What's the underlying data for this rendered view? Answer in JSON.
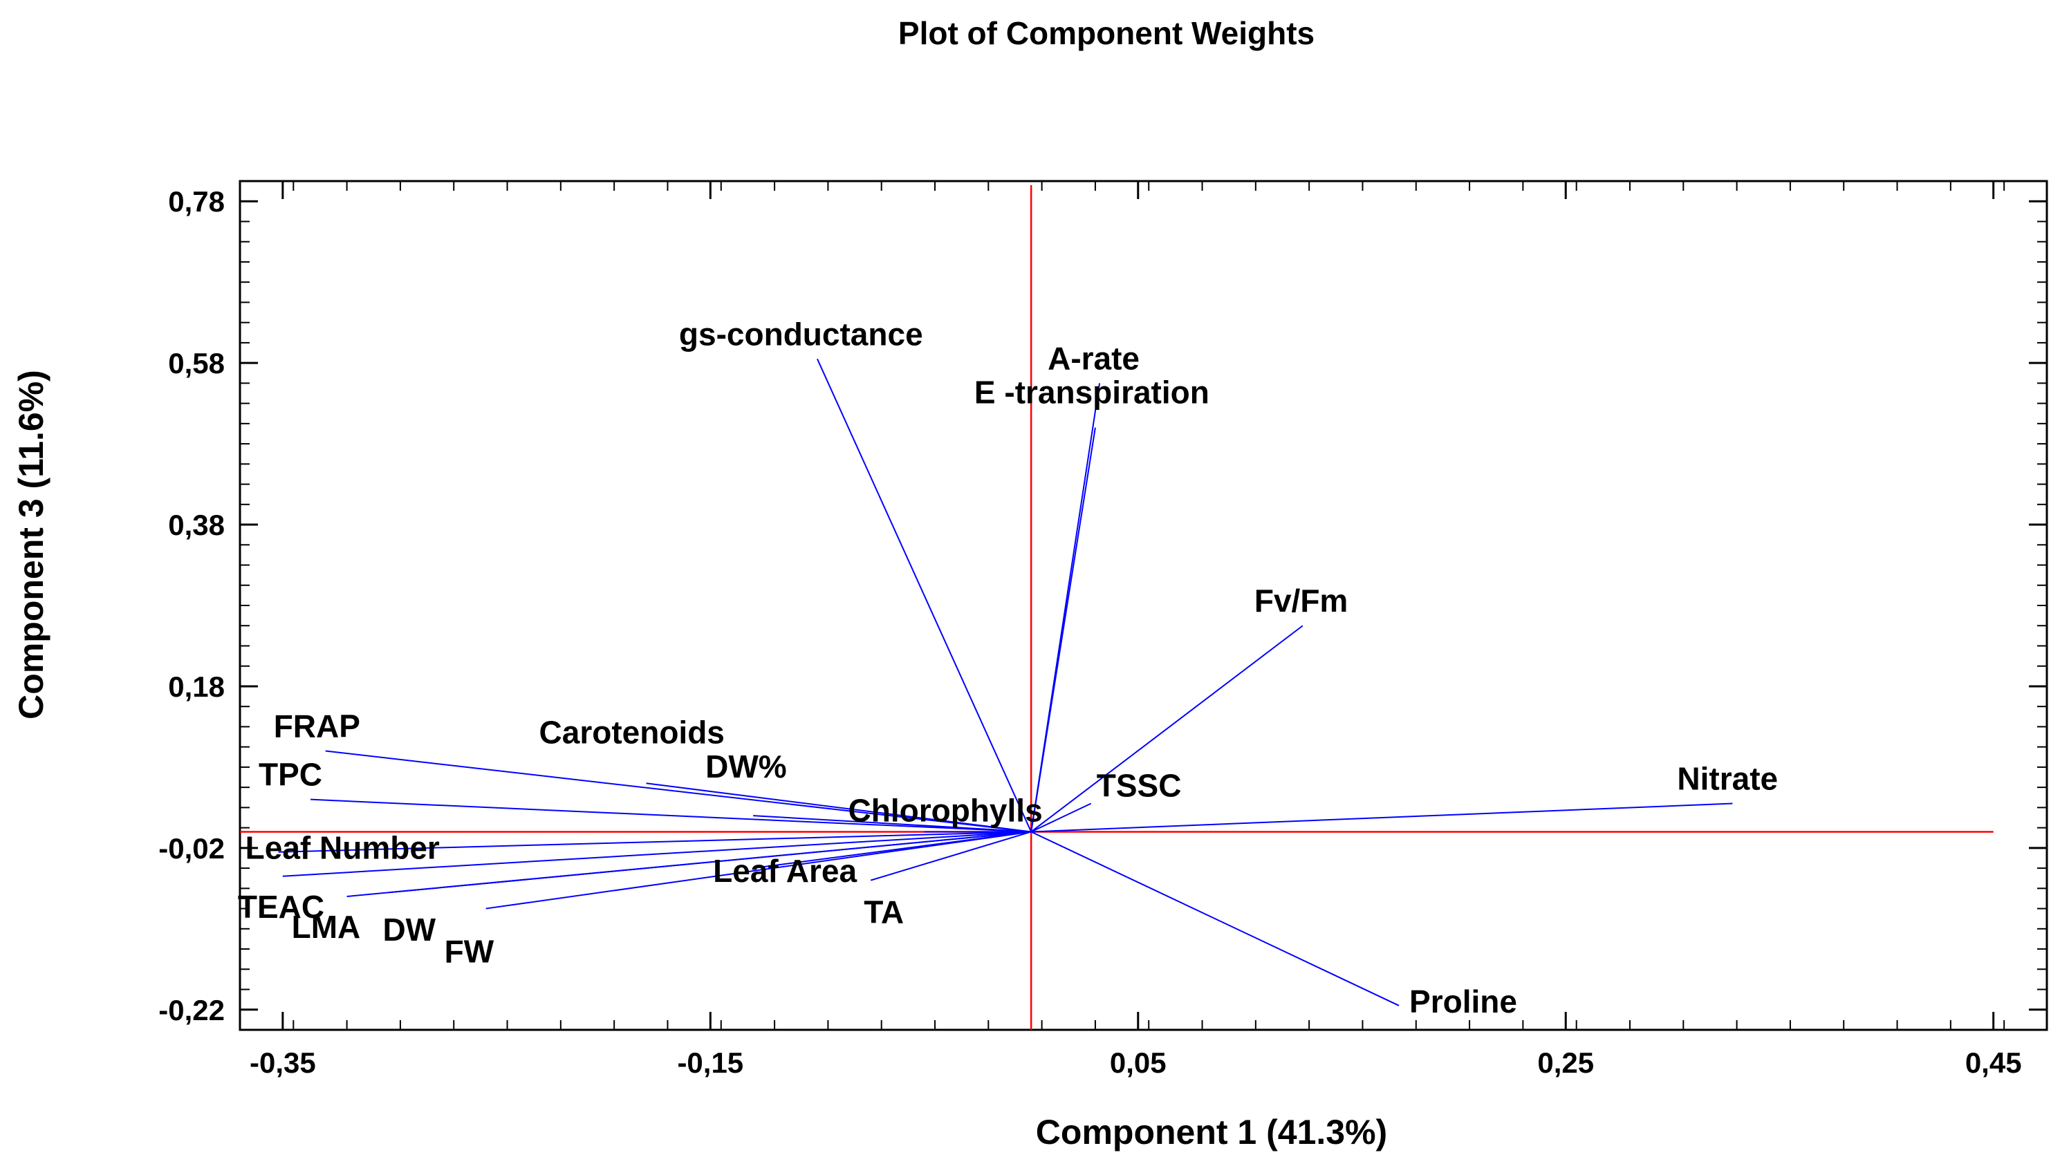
{
  "chart_data": {
    "type": "biplot",
    "title": "Plot of Component Weights",
    "xlabel": "Component 1 (41.3%)",
    "ylabel": "Component 3  (11.6%)",
    "xlim": [
      -0.37,
      0.475
    ],
    "ylim": [
      -0.245,
      0.805
    ],
    "xticks": [
      {
        "value": -0.35,
        "label": "-0,35"
      },
      {
        "value": -0.15,
        "label": "-0,15"
      },
      {
        "value": 0.05,
        "label": "0,05"
      },
      {
        "value": 0.25,
        "label": "0,25"
      },
      {
        "value": 0.45,
        "label": "0,45"
      }
    ],
    "yticks": [
      {
        "value": 0.78,
        "label": "0,78"
      },
      {
        "value": 0.58,
        "label": "0,58"
      },
      {
        "value": 0.38,
        "label": "0,38"
      },
      {
        "value": 0.18,
        "label": "0,18"
      },
      {
        "value": -0.02,
        "label": "-0,02"
      },
      {
        "value": -0.22,
        "label": "-0,22"
      }
    ],
    "colors": {
      "vectors": "#0000ff",
      "reference_lines": "#ff0000",
      "frame": "#000000"
    },
    "reference_lines": {
      "x": 0.0,
      "y": 0.0,
      "ymax": 0.8,
      "xmax": 0.45
    },
    "vectors": [
      {
        "name": "gs-conductance",
        "x": -0.1,
        "y": 0.585
      },
      {
        "name": "A-rate",
        "x": 0.032,
        "y": 0.555
      },
      {
        "name": "E -transpiration",
        "x": 0.03,
        "y": 0.5
      },
      {
        "name": "Fv/Fm",
        "x": 0.127,
        "y": 0.255
      },
      {
        "name": "TSSC",
        "x": 0.028,
        "y": 0.035
      },
      {
        "name": "Nitrate",
        "x": 0.328,
        "y": 0.035
      },
      {
        "name": "Proline",
        "x": 0.172,
        "y": -0.215
      },
      {
        "name": "FRAP",
        "x": -0.33,
        "y": 0.1
      },
      {
        "name": "Carotenoids",
        "x": -0.18,
        "y": 0.06
      },
      {
        "name": "TPC",
        "x": -0.337,
        "y": 0.04
      },
      {
        "name": "DW%",
        "x": -0.13,
        "y": 0.02
      },
      {
        "name": "Chlorophylls",
        "x": -0.05,
        "y": 0.0
      },
      {
        "name": "Leaf Number",
        "x": -0.352,
        "y": -0.025
      },
      {
        "name": "TEAC",
        "x": -0.35,
        "y": -0.055
      },
      {
        "name": "Leaf Area",
        "x": -0.13,
        "y": -0.045
      },
      {
        "name": "LMA",
        "x": -0.32,
        "y": -0.08
      },
      {
        "name": "DW",
        "x": -0.3,
        "y": -0.075
      },
      {
        "name": "FW",
        "x": -0.255,
        "y": -0.095
      },
      {
        "name": "TA",
        "x": -0.075,
        "y": -0.06
      }
    ]
  }
}
